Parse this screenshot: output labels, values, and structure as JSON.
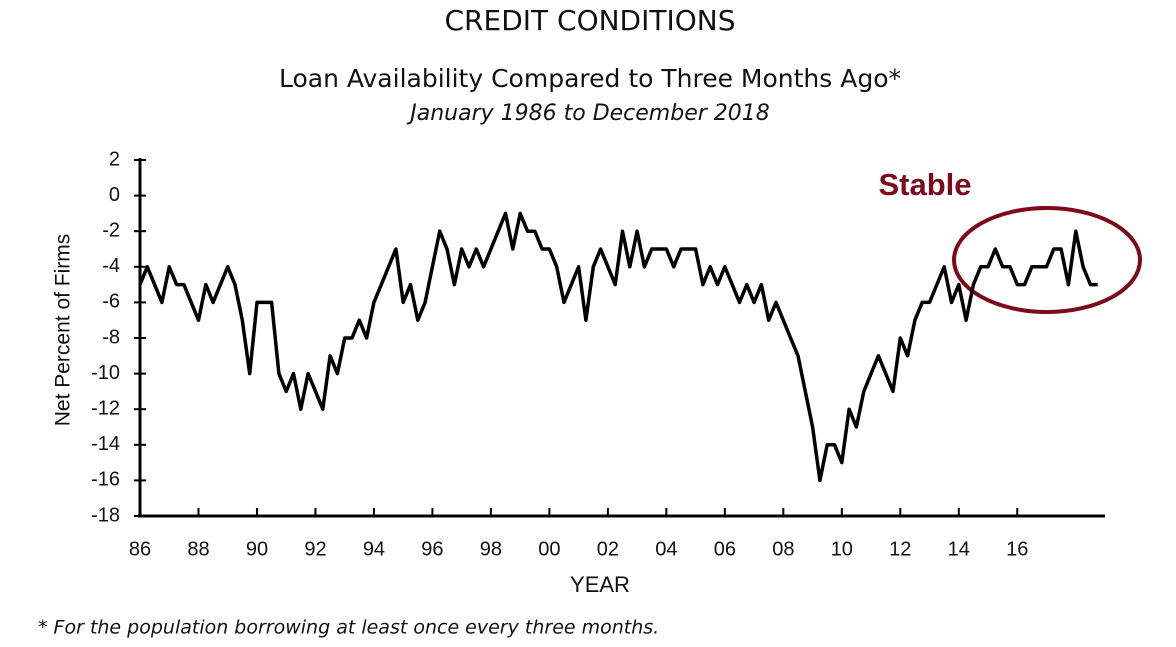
{
  "chart_data": {
    "type": "line",
    "title": "CREDIT CONDITIONS",
    "subtitle": "Loan Availability Compared to Three Months Ago*",
    "date_range": "January 1986 to December 2018",
    "y_label": "Net Percent of Firms",
    "x_label": "YEAR",
    "footnote": "* For the population borrowing at least once every three months.",
    "annotation": "Stable",
    "color": "#000000",
    "annotation_color": "#7b0a1a",
    "xlim": [
      1986,
      2019
    ],
    "ylim": [
      -18,
      2
    ],
    "yticks": [
      2,
      0,
      -2,
      -4,
      -6,
      -8,
      -10,
      -12,
      -14,
      -16,
      -18
    ],
    "xticks": [
      {
        "value": 1986,
        "label": "86"
      },
      {
        "value": 1988,
        "label": "88"
      },
      {
        "value": 1990,
        "label": "90"
      },
      {
        "value": 1992,
        "label": "92"
      },
      {
        "value": 1994,
        "label": "94"
      },
      {
        "value": 1996,
        "label": "96"
      },
      {
        "value": 1998,
        "label": "98"
      },
      {
        "value": 2000,
        "label": "00"
      },
      {
        "value": 2002,
        "label": "02"
      },
      {
        "value": 2004,
        "label": "04"
      },
      {
        "value": 2006,
        "label": "06"
      },
      {
        "value": 2008,
        "label": "08"
      },
      {
        "value": 2010,
        "label": "10"
      },
      {
        "value": 2012,
        "label": "12"
      },
      {
        "value": 2014,
        "label": "14"
      },
      {
        "value": 2016,
        "label": "16"
      }
    ],
    "x": [
      1986,
      1986.25,
      1986.5,
      1986.75,
      1987,
      1987.25,
      1987.5,
      1987.75,
      1988,
      1988.25,
      1988.5,
      1988.75,
      1989,
      1989.25,
      1989.5,
      1989.75,
      1990,
      1990.25,
      1990.5,
      1990.75,
      1991,
      1991.25,
      1991.5,
      1991.75,
      1992,
      1992.25,
      1992.5,
      1992.75,
      1993,
      1993.25,
      1993.5,
      1993.75,
      1994,
      1994.25,
      1994.5,
      1994.75,
      1995,
      1995.25,
      1995.5,
      1995.75,
      1996,
      1996.25,
      1996.5,
      1996.75,
      1997,
      1997.25,
      1997.5,
      1997.75,
      1998,
      1998.25,
      1998.5,
      1998.75,
      1999,
      1999.25,
      1999.5,
      1999.75,
      2000,
      2000.25,
      2000.5,
      2000.75,
      2001,
      2001.25,
      2001.5,
      2001.75,
      2002,
      2002.25,
      2002.5,
      2002.75,
      2003,
      2003.25,
      2003.5,
      2003.75,
      2004,
      2004.25,
      2004.5,
      2004.75,
      2005,
      2005.25,
      2005.5,
      2005.75,
      2006,
      2006.25,
      2006.5,
      2006.75,
      2007,
      2007.25,
      2007.5,
      2007.75,
      2008,
      2008.25,
      2008.5,
      2008.75,
      2009,
      2009.25,
      2009.5,
      2009.75,
      2010,
      2010.25,
      2010.5,
      2010.75,
      2011,
      2011.25,
      2011.5,
      2011.75,
      2012,
      2012.25,
      2012.5,
      2012.75,
      2013,
      2013.25,
      2013.5,
      2013.75,
      2014,
      2014.25,
      2014.5,
      2014.75,
      2015,
      2015.25,
      2015.5,
      2015.75,
      2016,
      2016.25,
      2016.5,
      2016.75,
      2017,
      2017.25,
      2017.5,
      2017.75,
      2018,
      2018.25,
      2018.5,
      2018.75
    ],
    "values": [
      -5,
      -4,
      -5,
      -6,
      -4,
      -5,
      -5,
      -6,
      -7,
      -5,
      -6,
      -5,
      -4,
      -5,
      -7,
      -10,
      -6,
      -6,
      -6,
      -10,
      -11,
      -10,
      -12,
      -10,
      -11,
      -12,
      -9,
      -10,
      -8,
      -8,
      -7,
      -8,
      -6,
      -5,
      -4,
      -3,
      -6,
      -5,
      -7,
      -6,
      -4,
      -2,
      -3,
      -5,
      -3,
      -4,
      -3,
      -4,
      -3,
      -2,
      -1,
      -3,
      -1,
      -2,
      -2,
      -3,
      -3,
      -4,
      -6,
      -5,
      -4,
      -7,
      -4,
      -3,
      -4,
      -5,
      -2,
      -4,
      -2,
      -4,
      -3,
      -3,
      -3,
      -4,
      -3,
      -3,
      -3,
      -5,
      -4,
      -5,
      -4,
      -5,
      -6,
      -5,
      -6,
      -5,
      -7,
      -6,
      -7,
      -8,
      -9,
      -11,
      -13,
      -16,
      -14,
      -14,
      -15,
      -12,
      -13,
      -11,
      -10,
      -9,
      -10,
      -11,
      -8,
      -9,
      -7,
      -6,
      -6,
      -5,
      -4,
      -6,
      -5,
      -7,
      -5,
      -4,
      -4,
      -3,
      -4,
      -4,
      -5,
      -5,
      -4,
      -4,
      -4,
      -3,
      -3,
      -5,
      -2,
      -4,
      -5,
      -5
    ]
  }
}
